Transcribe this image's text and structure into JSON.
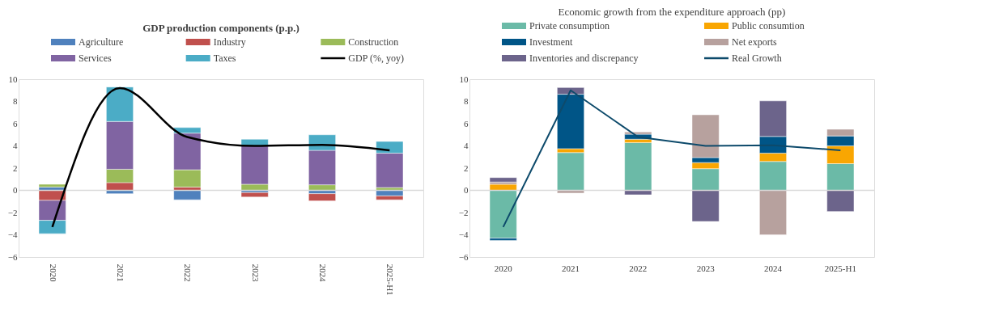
{
  "chart_data": [
    {
      "type": "bar",
      "title": "GDP production components (p.p.)",
      "stacked": true,
      "legend": "top",
      "grid": false,
      "categories": [
        "2020",
        "2021",
        "2022",
        "2023",
        "2024",
        "2025-H1"
      ],
      "ylim": [
        -6,
        10
      ],
      "yticks": [
        -6,
        -4,
        -2,
        0,
        2,
        4,
        6,
        8,
        10
      ],
      "ref_lines": [
        {
          "axis": "y",
          "value": 0,
          "color": "#d9d9d9"
        }
      ],
      "series": [
        {
          "name": "Agriculture",
          "color": "#4f81bd",
          "values": [
            0.3,
            -0.3,
            -0.85,
            -0.2,
            -0.3,
            -0.5
          ]
        },
        {
          "name": "Industry",
          "color": "#c0504d",
          "values": [
            -0.9,
            0.7,
            0.3,
            -0.4,
            -0.65,
            -0.35
          ]
        },
        {
          "name": "Construction",
          "color": "#9bbb59",
          "values": [
            0.25,
            1.2,
            1.55,
            0.55,
            0.5,
            0.25
          ]
        },
        {
          "name": "Services",
          "color": "#8064a2",
          "values": [
            -1.8,
            4.3,
            3.3,
            3.45,
            3.1,
            3.1
          ]
        },
        {
          "name": "Taxes",
          "color": "#4bacc6",
          "values": [
            -1.2,
            3.1,
            0.5,
            0.6,
            1.4,
            1.05
          ]
        },
        {
          "name": "GDP (%, yoy)",
          "type": "line",
          "color": "#000000",
          "values": [
            -3.3,
            9.2,
            4.8,
            4.0,
            4.1,
            3.6
          ]
        }
      ]
    },
    {
      "type": "bar",
      "title": "Economic growth from the expenditure approach (pp)",
      "stacked": true,
      "legend": "top",
      "grid": false,
      "categories": [
        "2020",
        "2021",
        "2022",
        "2023",
        "2024",
        "2025-H1"
      ],
      "ylim": [
        -6,
        10
      ],
      "yticks": [
        -6,
        -4,
        -2,
        0,
        2,
        4,
        6,
        8,
        10
      ],
      "ref_lines": [
        {
          "axis": "y",
          "value": 0,
          "color": "#d9d9d9"
        }
      ],
      "series": [
        {
          "name": "Private consumption",
          "color": "#6bbaa7",
          "values": [
            -4.3,
            3.4,
            4.3,
            1.95,
            2.6,
            2.4
          ]
        },
        {
          "name": "Public consumtion",
          "color": "#f9a602",
          "values": [
            0.55,
            0.35,
            0.3,
            0.55,
            0.75,
            1.6
          ]
        },
        {
          "name": "Investment",
          "color": "#005587",
          "values": [
            -0.2,
            4.9,
            0.45,
            0.45,
            1.5,
            0.9
          ]
        },
        {
          "name": "Net exports",
          "color": "#b7a19e",
          "values": [
            0.2,
            -0.25,
            0.2,
            3.85,
            -4.0,
            0.6
          ]
        },
        {
          "name": "Inventories and discrepancy",
          "color": "#6c648b",
          "values": [
            0.4,
            0.6,
            -0.4,
            -2.8,
            3.2,
            -1.9
          ]
        },
        {
          "name": "Real Growth",
          "type": "line",
          "color": "#0d4a6b",
          "values": [
            -3.3,
            9.0,
            4.8,
            4.0,
            4.05,
            3.6
          ]
        }
      ]
    }
  ]
}
